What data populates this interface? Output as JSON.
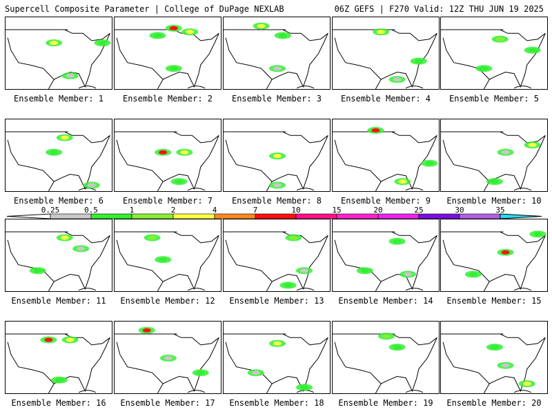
{
  "header": {
    "title_left": "Supercell Composite Parameter | College of DuPage NEXLAB",
    "title_right": "06Z GEFS | F270 Valid: 12Z THU JUN 19 2025"
  },
  "colorbar": {
    "ticks": [
      "0.25",
      "0.5",
      "1",
      "2",
      "4",
      "7",
      "10",
      "15",
      "20",
      "25",
      "30",
      "35"
    ],
    "colors": [
      "#c8c8c8",
      "#33ee33",
      "#88ee33",
      "#ffff44",
      "#ff8820",
      "#ff1010",
      "#ff1188",
      "#ff22cc",
      "#ee22ee",
      "#7a10e0",
      "#b060e0",
      "#22ddee"
    ]
  },
  "members": [
    {
      "label": "Ensemble Member: 1",
      "blobs": [
        [
          0.45,
          0.35,
          "#ffff44"
        ],
        [
          0.9,
          0.35,
          "#33ee33"
        ],
        [
          0.6,
          0.8,
          "#c8c8c8"
        ]
      ]
    },
    {
      "label": "Ensemble Member: 2",
      "blobs": [
        [
          0.55,
          0.15,
          "#ff1010"
        ],
        [
          0.7,
          0.2,
          "#ffff44"
        ],
        [
          0.4,
          0.25,
          "#33ee33"
        ],
        [
          0.55,
          0.7,
          "#33ee33"
        ]
      ]
    },
    {
      "label": "Ensemble Member: 3",
      "blobs": [
        [
          0.35,
          0.12,
          "#ffff44"
        ],
        [
          0.55,
          0.25,
          "#33ee33"
        ],
        [
          0.5,
          0.7,
          "#c8c8c8"
        ]
      ]
    },
    {
      "label": "Ensemble Member: 4",
      "blobs": [
        [
          0.45,
          0.2,
          "#ffff44"
        ],
        [
          0.8,
          0.6,
          "#33ee33"
        ],
        [
          0.6,
          0.85,
          "#c8c8c8"
        ]
      ]
    },
    {
      "label": "Ensemble Member: 5",
      "blobs": [
        [
          0.55,
          0.3,
          "#88ee33"
        ],
        [
          0.85,
          0.45,
          "#33ee33"
        ],
        [
          0.4,
          0.7,
          "#33ee33"
        ]
      ]
    },
    {
      "label": "Ensemble Member: 6",
      "blobs": [
        [
          0.55,
          0.25,
          "#ffff44"
        ],
        [
          0.45,
          0.45,
          "#33ee33"
        ],
        [
          0.8,
          0.9,
          "#c8c8c8"
        ]
      ]
    },
    {
      "label": "Ensemble Member: 7",
      "blobs": [
        [
          0.45,
          0.45,
          "#ff1010"
        ],
        [
          0.65,
          0.45,
          "#ffff44"
        ],
        [
          0.6,
          0.85,
          "#33ee33"
        ]
      ]
    },
    {
      "label": "Ensemble Member: 8",
      "blobs": [
        [
          0.5,
          0.5,
          "#ffff44"
        ],
        [
          0.5,
          0.9,
          "#c8c8c8"
        ]
      ]
    },
    {
      "label": "Ensemble Member: 9",
      "blobs": [
        [
          0.4,
          0.15,
          "#ff1010"
        ],
        [
          0.65,
          0.85,
          "#ffff44"
        ],
        [
          0.9,
          0.6,
          "#33ee33"
        ]
      ]
    },
    {
      "label": "Ensemble Member: 10",
      "blobs": [
        [
          0.85,
          0.35,
          "#ffff44"
        ],
        [
          0.6,
          0.45,
          "#c8c8c8"
        ],
        [
          0.5,
          0.85,
          "#33ee33"
        ]
      ]
    },
    {
      "label": "Ensemble Member: 11",
      "blobs": [
        [
          0.55,
          0.25,
          "#ffff44"
        ],
        [
          0.3,
          0.7,
          "#33ee33"
        ],
        [
          0.7,
          0.4,
          "#c8c8c8"
        ]
      ]
    },
    {
      "label": "Ensemble Member: 12",
      "blobs": [
        [
          0.35,
          0.25,
          "#88ee33"
        ],
        [
          0.45,
          0.55,
          "#33ee33"
        ]
      ]
    },
    {
      "label": "Ensemble Member: 13",
      "blobs": [
        [
          0.65,
          0.25,
          "#88ee33"
        ],
        [
          0.75,
          0.7,
          "#c8c8c8"
        ],
        [
          0.6,
          0.9,
          "#33ee33"
        ]
      ]
    },
    {
      "label": "Ensemble Member: 14",
      "blobs": [
        [
          0.6,
          0.3,
          "#33ee33"
        ],
        [
          0.3,
          0.7,
          "#33ee33"
        ],
        [
          0.7,
          0.75,
          "#c8c8c8"
        ]
      ]
    },
    {
      "label": "Ensemble Member: 15",
      "blobs": [
        [
          0.6,
          0.45,
          "#ff1010"
        ],
        [
          0.9,
          0.2,
          "#33ee33"
        ],
        [
          0.3,
          0.75,
          "#33ee33"
        ]
      ]
    },
    {
      "label": "Ensemble Member: 16",
      "blobs": [
        [
          0.4,
          0.25,
          "#ff1010"
        ],
        [
          0.6,
          0.25,
          "#ffff44"
        ],
        [
          0.5,
          0.8,
          "#33ee33"
        ]
      ]
    },
    {
      "label": "Ensemble Member: 17",
      "blobs": [
        [
          0.3,
          0.12,
          "#ff1010"
        ],
        [
          0.8,
          0.7,
          "#33ee33"
        ],
        [
          0.5,
          0.5,
          "#c8c8c8"
        ]
      ]
    },
    {
      "label": "Ensemble Member: 18",
      "blobs": [
        [
          0.5,
          0.3,
          "#ffff44"
        ],
        [
          0.75,
          0.9,
          "#33ee33"
        ],
        [
          0.3,
          0.7,
          "#c8c8c8"
        ]
      ]
    },
    {
      "label": "Ensemble Member: 19",
      "blobs": [
        [
          0.5,
          0.2,
          "#88ee33"
        ],
        [
          0.6,
          0.35,
          "#33ee33"
        ]
      ]
    },
    {
      "label": "Ensemble Member: 20",
      "blobs": [
        [
          0.5,
          0.35,
          "#33ee33"
        ],
        [
          0.8,
          0.85,
          "#ffff44"
        ],
        [
          0.6,
          0.6,
          "#c8c8c8"
        ]
      ]
    }
  ]
}
